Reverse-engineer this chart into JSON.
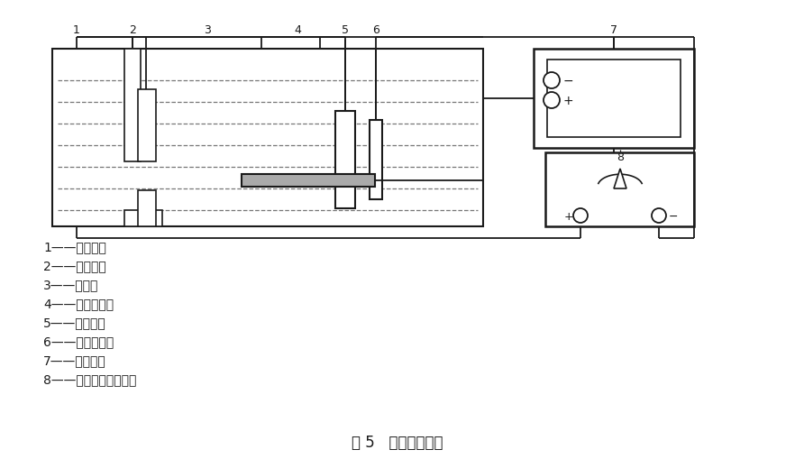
{
  "bg_color": "#ffffff",
  "line_color": "#1a1a1a",
  "title": "图 5   电解脱锡装置",
  "legend_items": [
    "1——脱锡槽；",
    "2——试样夹；",
    "3——试样；",
    "4——脱锡溶液；",
    "5——碳电极；",
    "6——参考电极；",
    "7——记录仪；",
    "8——恒电流直流电源。"
  ]
}
